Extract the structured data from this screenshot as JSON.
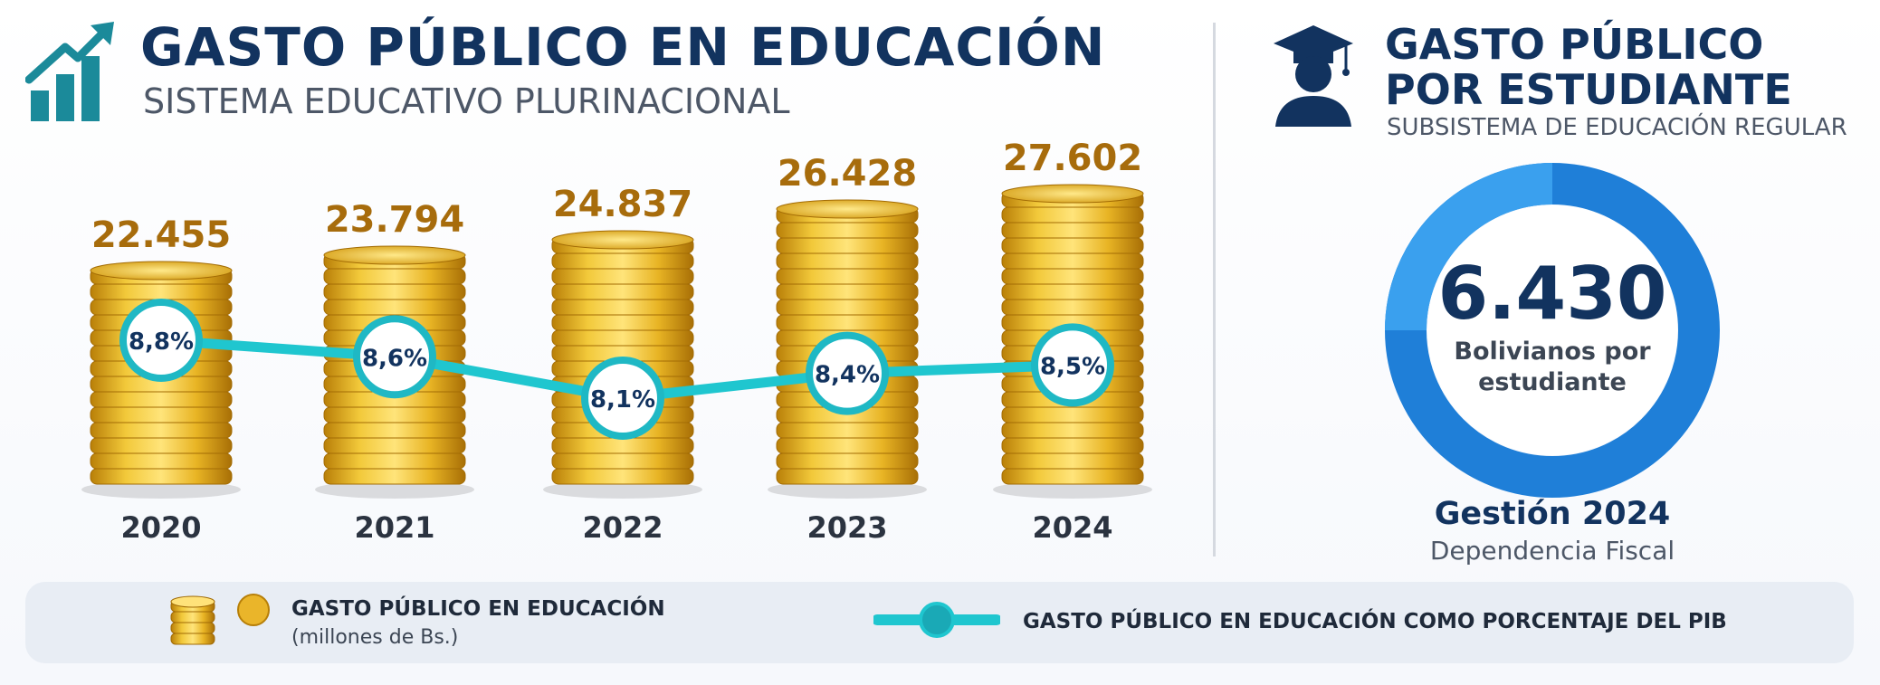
{
  "header": {
    "title": "GASTO PÚBLICO EN EDUCACIÓN",
    "subtitle": "SISTEMA EDUCATIVO PLURINACIONAL",
    "icon": "growth-chart-icon"
  },
  "colors": {
    "navy": "#12335f",
    "gold": "#e3b52a",
    "teal": "#1fc6cf",
    "value_text": "#a76c0c",
    "ring_blue": "#1f7fd8",
    "ring_light": "#3aa0ee"
  },
  "chart_data": {
    "type": "bar",
    "categories": [
      "2020",
      "2021",
      "2022",
      "2023",
      "2024"
    ],
    "series": [
      {
        "name": "GASTO PÚBLICO EN EDUCACIÓN (millones de Bs.)",
        "values": [
          22455,
          23794,
          24837,
          26428,
          27602
        ],
        "labels": [
          "22.455",
          "23.794",
          "24.837",
          "26.428",
          "27.602"
        ]
      },
      {
        "name": "GASTO PÚBLICO EN EDUCACIÓN COMO PORCENTAJE DEL PIB",
        "type": "line",
        "values": [
          8.8,
          8.6,
          8.1,
          8.4,
          8.5
        ],
        "labels": [
          "8,8%",
          "8,6%",
          "8,1%",
          "8,4%",
          "8,5%"
        ]
      }
    ]
  },
  "per_student": {
    "title": "GASTO PÚBLICO POR ESTUDIANTE",
    "subtitle": "SUBSISTEMA DE EDUCACIÓN REGULAR",
    "icon": "graduate-icon",
    "value": "6.430",
    "unit": "Bolivianos por estudiante",
    "period": "Gestión 2024",
    "scope": "Dependencia Fiscal"
  },
  "legend": {
    "item1_title": "GASTO PÚBLICO EN EDUCACIÓN",
    "item1_unit": "(millones de Bs.)",
    "item1_icon": "coins-icon",
    "item2_title": "GASTO PÚBLICO EN EDUCACIÓN COMO PORCENTAJE DEL PIB",
    "item2_icon": "line-marker-icon"
  }
}
